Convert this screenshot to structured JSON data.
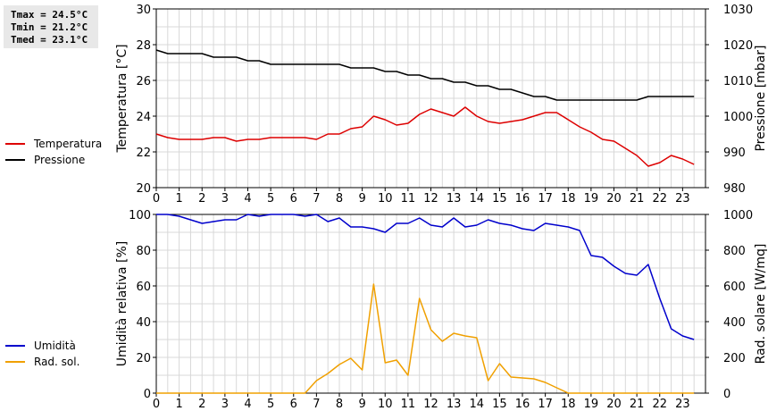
{
  "stats": {
    "tmax": "Tmax = 24.5°C",
    "tmin": "Tmin = 21.2°C",
    "tmed": "Tmed = 23.1°C"
  },
  "chart_data": [
    {
      "type": "line",
      "ylabel_left": "Temperatura [°C]",
      "ylabel_right": "Pressione [mbar]",
      "xlim": [
        0,
        24
      ],
      "ylim_left": [
        20,
        30
      ],
      "ylim_right": [
        980,
        1030
      ],
      "grid": true,
      "legend_position": "left",
      "x_ticks": [
        0,
        1,
        2,
        3,
        4,
        5,
        6,
        7,
        8,
        9,
        10,
        11,
        12,
        13,
        14,
        15,
        16,
        17,
        18,
        19,
        20,
        21,
        22,
        23
      ],
      "y_ticks_left": [
        20,
        22,
        24,
        26,
        28,
        30
      ],
      "y_ticks_right": [
        980,
        990,
        1000,
        1010,
        1020,
        1030
      ],
      "series": [
        {
          "name": "Temperatura",
          "axis": "left",
          "color": "#dd0000",
          "x": [
            0,
            0.5,
            1,
            1.5,
            2,
            2.5,
            3,
            3.5,
            4,
            4.5,
            5,
            5.5,
            6,
            6.5,
            7,
            7.5,
            8,
            8.5,
            9,
            9.5,
            10,
            10.5,
            11,
            11.5,
            12,
            12.5,
            13,
            13.5,
            14,
            14.5,
            15,
            15.5,
            16,
            16.5,
            17,
            17.5,
            18,
            18.5,
            19,
            19.5,
            20,
            20.5,
            21,
            21.5,
            22,
            22.5,
            23,
            23.5
          ],
          "values": [
            23.0,
            22.8,
            22.7,
            22.7,
            22.7,
            22.8,
            22.8,
            22.6,
            22.7,
            22.7,
            22.8,
            22.8,
            22.8,
            22.8,
            22.7,
            23.0,
            23.0,
            23.3,
            23.4,
            24.0,
            23.8,
            23.5,
            23.6,
            24.1,
            24.4,
            24.2,
            24.0,
            24.5,
            24.0,
            23.7,
            23.6,
            23.7,
            23.8,
            24.0,
            24.2,
            24.2,
            23.8,
            23.4,
            23.1,
            22.7,
            22.6,
            22.2,
            21.8,
            21.2,
            21.4,
            21.8,
            21.6,
            21.3
          ]
        },
        {
          "name": "Pressione",
          "axis": "right",
          "color": "#000000",
          "x": [
            0,
            0.5,
            1,
            1.5,
            2,
            2.5,
            3,
            3.5,
            4,
            4.5,
            5,
            5.5,
            6,
            6.5,
            7,
            7.5,
            8,
            8.5,
            9,
            9.5,
            10,
            10.5,
            11,
            11.5,
            12,
            12.5,
            13,
            13.5,
            14,
            14.5,
            15,
            15.5,
            16,
            16.5,
            17,
            17.5,
            18,
            18.5,
            19,
            19.5,
            20,
            20.5,
            21,
            21.5,
            22,
            22.5,
            23,
            23.5
          ],
          "values": [
            1018.5,
            1017.5,
            1017.5,
            1017.5,
            1017.5,
            1016.5,
            1016.5,
            1016.5,
            1015.5,
            1015.5,
            1014.5,
            1014.5,
            1014.5,
            1014.5,
            1014.5,
            1014.5,
            1014.5,
            1013.5,
            1013.5,
            1013.5,
            1012.5,
            1012.5,
            1011.5,
            1011.5,
            1010.5,
            1010.5,
            1009.5,
            1009.5,
            1008.5,
            1008.5,
            1007.5,
            1007.5,
            1006.5,
            1005.5,
            1005.5,
            1004.5,
            1004.5,
            1004.5,
            1004.5,
            1004.5,
            1004.5,
            1004.5,
            1004.5,
            1005.5,
            1005.5,
            1005.5,
            1005.5,
            1005.5
          ]
        }
      ]
    },
    {
      "type": "line",
      "ylabel_left": "Umidità relativa [%]",
      "ylabel_right": "Rad. solare [W/mq]",
      "xlim": [
        0,
        24
      ],
      "ylim_left": [
        0,
        100
      ],
      "ylim_right": [
        0,
        1000
      ],
      "grid": true,
      "legend_position": "left",
      "x_ticks": [
        0,
        1,
        2,
        3,
        4,
        5,
        6,
        7,
        8,
        9,
        10,
        11,
        12,
        13,
        14,
        15,
        16,
        17,
        18,
        19,
        20,
        21,
        22,
        23
      ],
      "y_ticks_left": [
        0,
        20,
        40,
        60,
        80,
        100
      ],
      "y_ticks_right": [
        0,
        200,
        400,
        600,
        800,
        1000
      ],
      "series": [
        {
          "name": "Umidità",
          "axis": "left",
          "color": "#0000cc",
          "x": [
            0,
            0.5,
            1,
            1.5,
            2,
            2.5,
            3,
            3.5,
            4,
            4.5,
            5,
            5.5,
            6,
            6.5,
            7,
            7.5,
            8,
            8.5,
            9,
            9.5,
            10,
            10.5,
            11,
            11.5,
            12,
            12.5,
            13,
            13.5,
            14,
            14.5,
            15,
            15.5,
            16,
            16.5,
            17,
            17.5,
            18,
            18.5,
            19,
            19.5,
            20,
            20.5,
            21,
            21.5,
            22,
            22.5,
            23,
            23.5
          ],
          "values": [
            100,
            100,
            99,
            97,
            95,
            96,
            97,
            97,
            100,
            99,
            100,
            100,
            100,
            99,
            100,
            96,
            98,
            93,
            93,
            92,
            90,
            95,
            95,
            98,
            94,
            93,
            98,
            93,
            94,
            97,
            95,
            94,
            92,
            91,
            95,
            94,
            93,
            91,
            77,
            76,
            71,
            67,
            66,
            72,
            53,
            36,
            32,
            30
          ]
        },
        {
          "name": "Rad. sol.",
          "axis": "right",
          "color": "#f0a000",
          "x": [
            0,
            0.5,
            1,
            1.5,
            2,
            2.5,
            3,
            3.5,
            4,
            4.5,
            5,
            5.5,
            6,
            6.5,
            7,
            7.5,
            8,
            8.5,
            9,
            9.5,
            10,
            10.5,
            11,
            11.5,
            12,
            12.5,
            13,
            13.5,
            14,
            14.5,
            15,
            15.5,
            16,
            16.5,
            17,
            17.5,
            18,
            18.5,
            19,
            19.5,
            20,
            20.5,
            21,
            21.5,
            22,
            22.5,
            23,
            23.5
          ],
          "values": [
            0,
            0,
            0,
            0,
            0,
            0,
            0,
            0,
            0,
            0,
            0,
            0,
            0,
            0,
            70,
            110,
            160,
            195,
            130,
            610,
            170,
            185,
            100,
            530,
            355,
            290,
            335,
            320,
            310,
            70,
            165,
            90,
            85,
            80,
            60,
            30,
            0,
            0,
            0,
            0,
            0,
            0,
            0,
            0,
            0,
            0,
            0,
            0
          ]
        }
      ]
    }
  ]
}
